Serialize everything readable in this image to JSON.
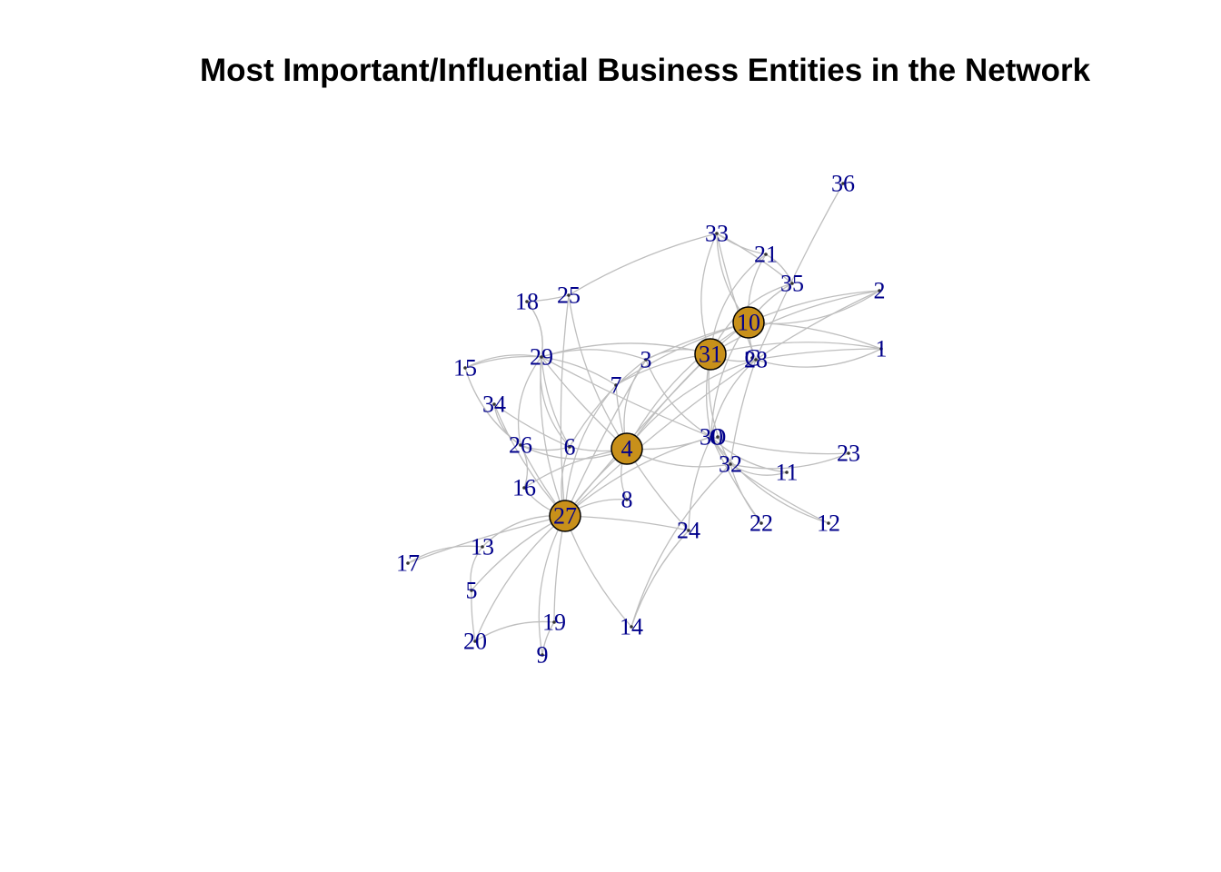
{
  "title": "Most Important/Influential Business Entities in the Network",
  "colors": {
    "edge": "#bebebe",
    "label": "#00008b",
    "highlight_fill": "#c8901a",
    "node_border": "#000000",
    "background": "#ffffff"
  },
  "nodes": [
    {
      "id": "1",
      "highlighted": false
    },
    {
      "id": "2",
      "highlighted": false
    },
    {
      "id": "3",
      "highlighted": false
    },
    {
      "id": "4",
      "highlighted": true
    },
    {
      "id": "5",
      "highlighted": false
    },
    {
      "id": "6",
      "highlighted": false
    },
    {
      "id": "7",
      "highlighted": false
    },
    {
      "id": "8",
      "highlighted": false
    },
    {
      "id": "9",
      "highlighted": false
    },
    {
      "id": "10",
      "highlighted": true
    },
    {
      "id": "11",
      "highlighted": false
    },
    {
      "id": "12",
      "highlighted": false
    },
    {
      "id": "13",
      "highlighted": false
    },
    {
      "id": "14",
      "highlighted": false
    },
    {
      "id": "15",
      "highlighted": false
    },
    {
      "id": "16",
      "highlighted": false
    },
    {
      "id": "17",
      "highlighted": false
    },
    {
      "id": "18",
      "highlighted": false
    },
    {
      "id": "19",
      "highlighted": false
    },
    {
      "id": "20",
      "highlighted": false
    },
    {
      "id": "21",
      "highlighted": false
    },
    {
      "id": "22",
      "highlighted": false
    },
    {
      "id": "23",
      "highlighted": false
    },
    {
      "id": "24",
      "highlighted": false
    },
    {
      "id": "25",
      "highlighted": false
    },
    {
      "id": "26",
      "highlighted": false
    },
    {
      "id": "27",
      "highlighted": true
    },
    {
      "id": "28",
      "highlighted": false
    },
    {
      "id": "29",
      "highlighted": false
    },
    {
      "id": "30",
      "highlighted": false
    },
    {
      "id": "31",
      "highlighted": true
    },
    {
      "id": "32",
      "highlighted": false
    },
    {
      "id": "33",
      "highlighted": false
    },
    {
      "id": "34",
      "highlighted": false
    },
    {
      "id": "35",
      "highlighted": false
    },
    {
      "id": "36",
      "highlighted": false
    },
    {
      "id": "C",
      "highlighted": false
    },
    {
      "id": "O",
      "highlighted": false
    }
  ],
  "edges": [
    [
      "1",
      "28"
    ],
    [
      "1",
      "10"
    ],
    [
      "1",
      "31"
    ],
    [
      "1",
      "28"
    ],
    [
      "2",
      "28"
    ],
    [
      "2",
      "10"
    ],
    [
      "2",
      "31"
    ],
    [
      "2",
      "10"
    ],
    [
      "36",
      "28"
    ],
    [
      "35",
      "10"
    ],
    [
      "35",
      "21"
    ],
    [
      "35",
      "31"
    ],
    [
      "35",
      "33"
    ],
    [
      "33",
      "21"
    ],
    [
      "33",
      "10"
    ],
    [
      "33",
      "31"
    ],
    [
      "33",
      "28"
    ],
    [
      "33",
      "25"
    ],
    [
      "21",
      "10"
    ],
    [
      "21",
      "31"
    ],
    [
      "10",
      "31"
    ],
    [
      "10",
      "28"
    ],
    [
      "10",
      "30"
    ],
    [
      "10",
      "4"
    ],
    [
      "10",
      "3"
    ],
    [
      "10",
      "7"
    ],
    [
      "31",
      "28"
    ],
    [
      "31",
      "3"
    ],
    [
      "31",
      "4"
    ],
    [
      "31",
      "30"
    ],
    [
      "31",
      "32"
    ],
    [
      "31",
      "29"
    ],
    [
      "31",
      "27"
    ],
    [
      "31",
      "7"
    ],
    [
      "28",
      "30"
    ],
    [
      "28",
      "4"
    ],
    [
      "28",
      "32"
    ],
    [
      "28",
      "27"
    ],
    [
      "3",
      "29"
    ],
    [
      "3",
      "4"
    ],
    [
      "3",
      "27"
    ],
    [
      "3",
      "6"
    ],
    [
      "3",
      "30"
    ],
    [
      "7",
      "27"
    ],
    [
      "7",
      "4"
    ],
    [
      "7",
      "29"
    ],
    [
      "29",
      "15"
    ],
    [
      "29",
      "18"
    ],
    [
      "29",
      "4"
    ],
    [
      "29",
      "6"
    ],
    [
      "29",
      "27"
    ],
    [
      "29",
      "26"
    ],
    [
      "29",
      "30"
    ],
    [
      "15",
      "29"
    ],
    [
      "15",
      "26"
    ],
    [
      "18",
      "29"
    ],
    [
      "18",
      "25"
    ],
    [
      "25",
      "27"
    ],
    [
      "25",
      "4"
    ],
    [
      "34",
      "26"
    ],
    [
      "34",
      "6"
    ],
    [
      "34",
      "27"
    ],
    [
      "26",
      "6"
    ],
    [
      "26",
      "4"
    ],
    [
      "26",
      "27"
    ],
    [
      "6",
      "4"
    ],
    [
      "6",
      "27"
    ],
    [
      "6",
      "29"
    ],
    [
      "4",
      "27"
    ],
    [
      "4",
      "30"
    ],
    [
      "4",
      "32"
    ],
    [
      "4",
      "8"
    ],
    [
      "4",
      "24"
    ],
    [
      "4",
      "16"
    ],
    [
      "16",
      "27"
    ],
    [
      "16",
      "26"
    ],
    [
      "30",
      "32"
    ],
    [
      "30",
      "23"
    ],
    [
      "30",
      "11"
    ],
    [
      "30",
      "12"
    ],
    [
      "30",
      "22"
    ],
    [
      "30",
      "24"
    ],
    [
      "30",
      "27"
    ],
    [
      "32",
      "11"
    ],
    [
      "32",
      "12"
    ],
    [
      "32",
      "22"
    ],
    [
      "32",
      "23"
    ],
    [
      "32",
      "14"
    ],
    [
      "24",
      "27"
    ],
    [
      "24",
      "14"
    ],
    [
      "8",
      "27"
    ],
    [
      "27",
      "13"
    ],
    [
      "27",
      "17"
    ],
    [
      "27",
      "5"
    ],
    [
      "27",
      "20"
    ],
    [
      "27",
      "9"
    ],
    [
      "27",
      "19"
    ],
    [
      "27",
      "14"
    ],
    [
      "13",
      "17"
    ],
    [
      "13",
      "5"
    ],
    [
      "5",
      "20"
    ],
    [
      "19",
      "9"
    ],
    [
      "19",
      "20"
    ]
  ]
}
